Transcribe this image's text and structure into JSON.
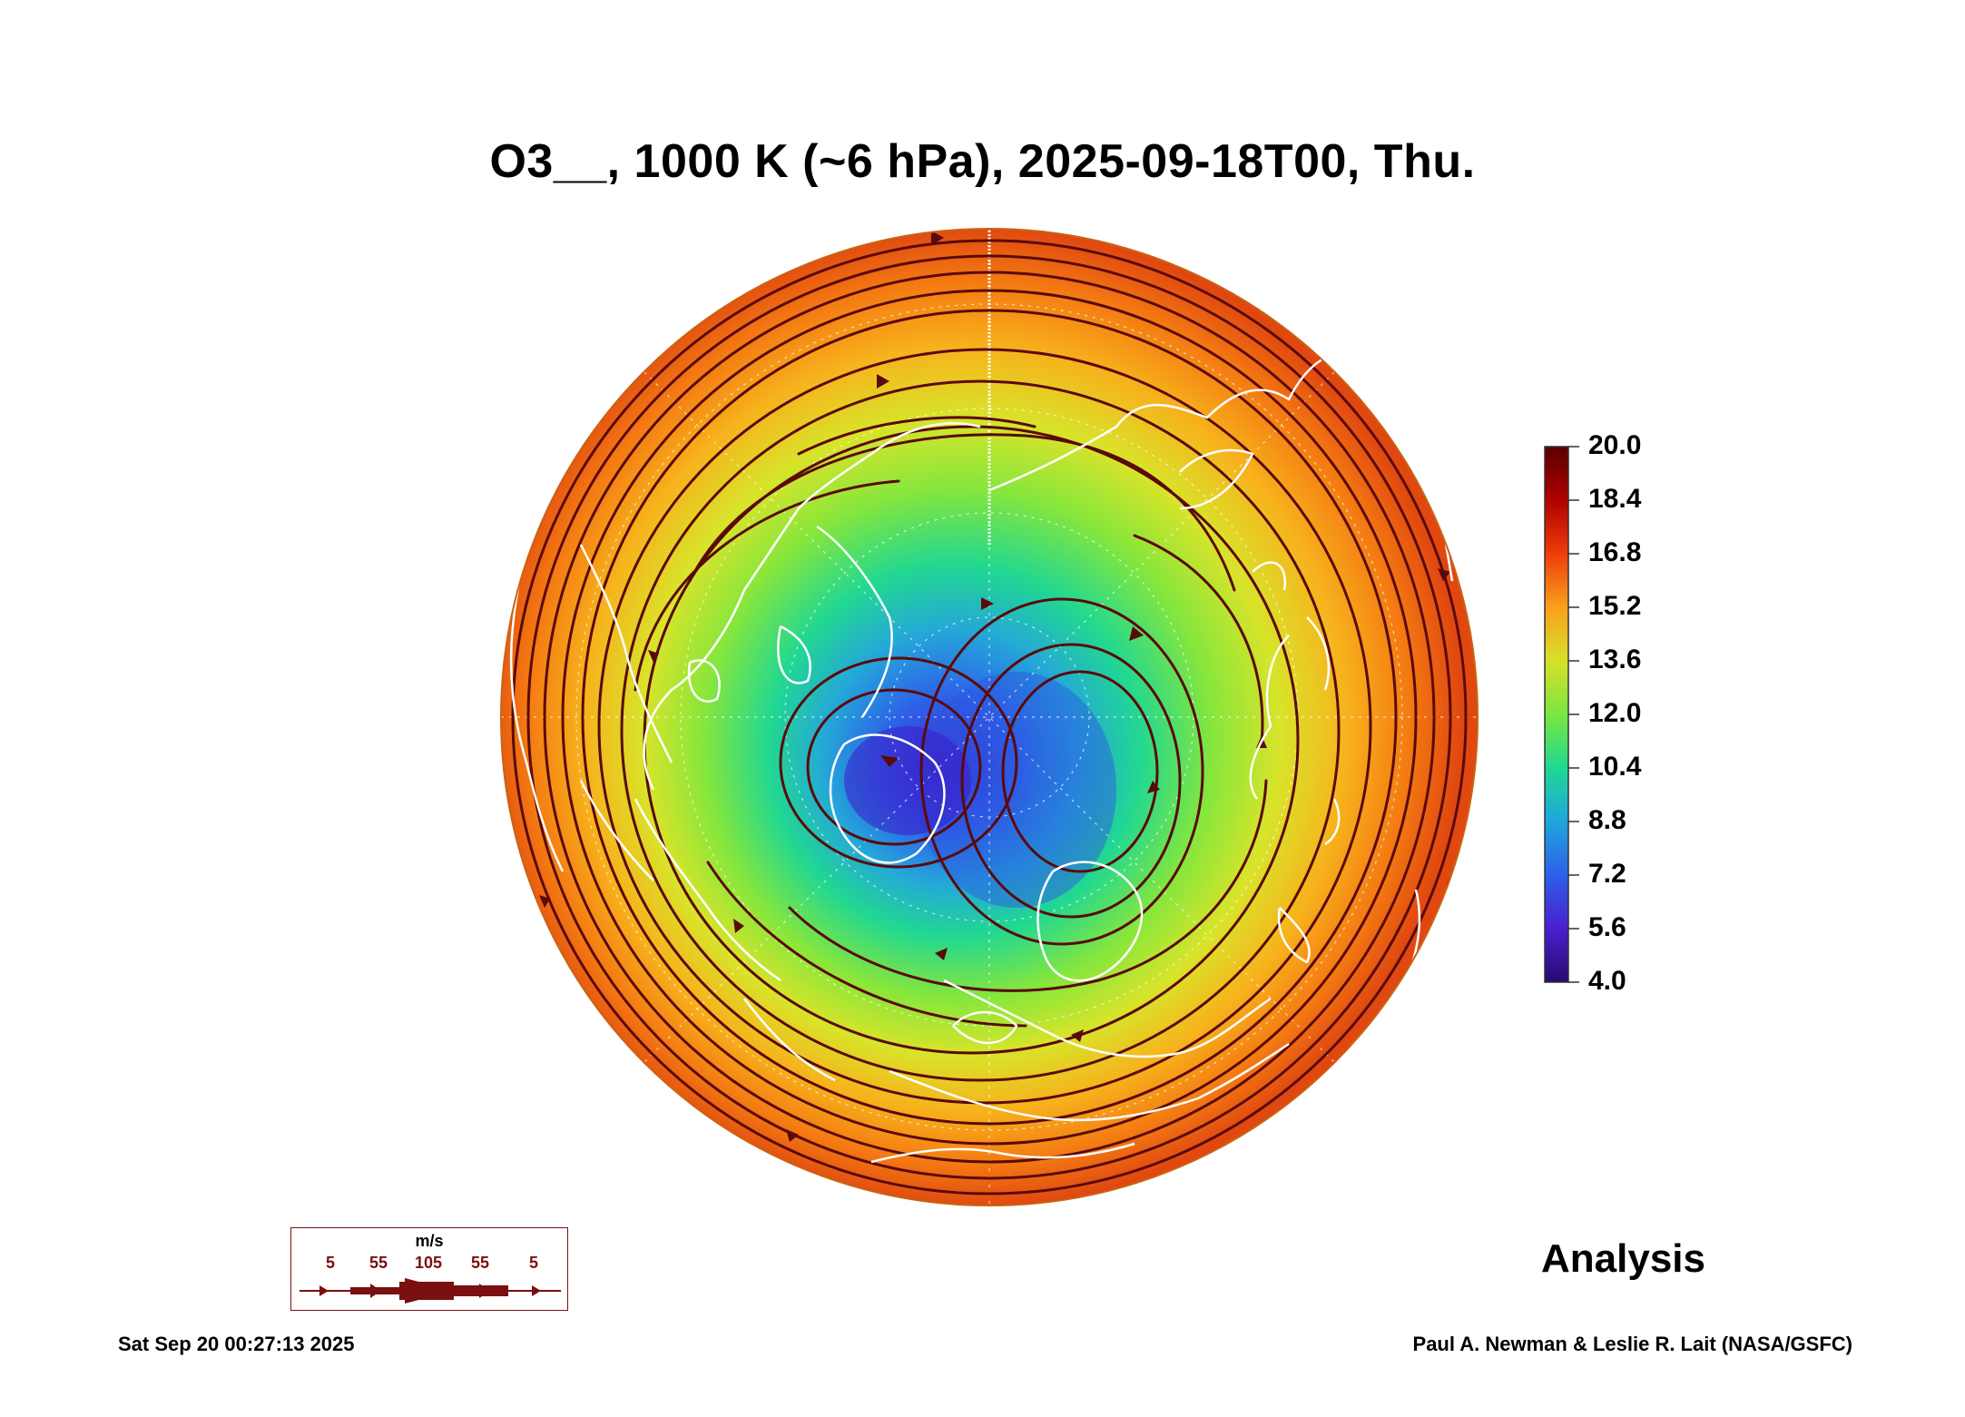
{
  "title": "O3__, 1000 K (~6 hPa), 2025-09-18T00, Thu.",
  "colorbar": {
    "tick_labels": [
      "20.0",
      "18.4",
      "16.8",
      "15.2",
      "13.6",
      "12.0",
      "10.4",
      "8.8",
      "7.2",
      "5.6",
      "4.0"
    ],
    "min": 4.0,
    "max": 20.0
  },
  "product_label": "Analysis",
  "wind_legend": {
    "unit": "m/s",
    "speeds": [
      "5",
      "55",
      "105",
      "55",
      "5"
    ]
  },
  "footer": {
    "timestamp": "Sat Sep 20 00:27:13 2025",
    "credit": "Paul A. Newman & Leslie R. Lait (NASA/GSFC)"
  },
  "colors": {
    "streamline": "#5a0a0a",
    "coastline": "#ffffff",
    "legend_border": "#7a1010"
  }
}
